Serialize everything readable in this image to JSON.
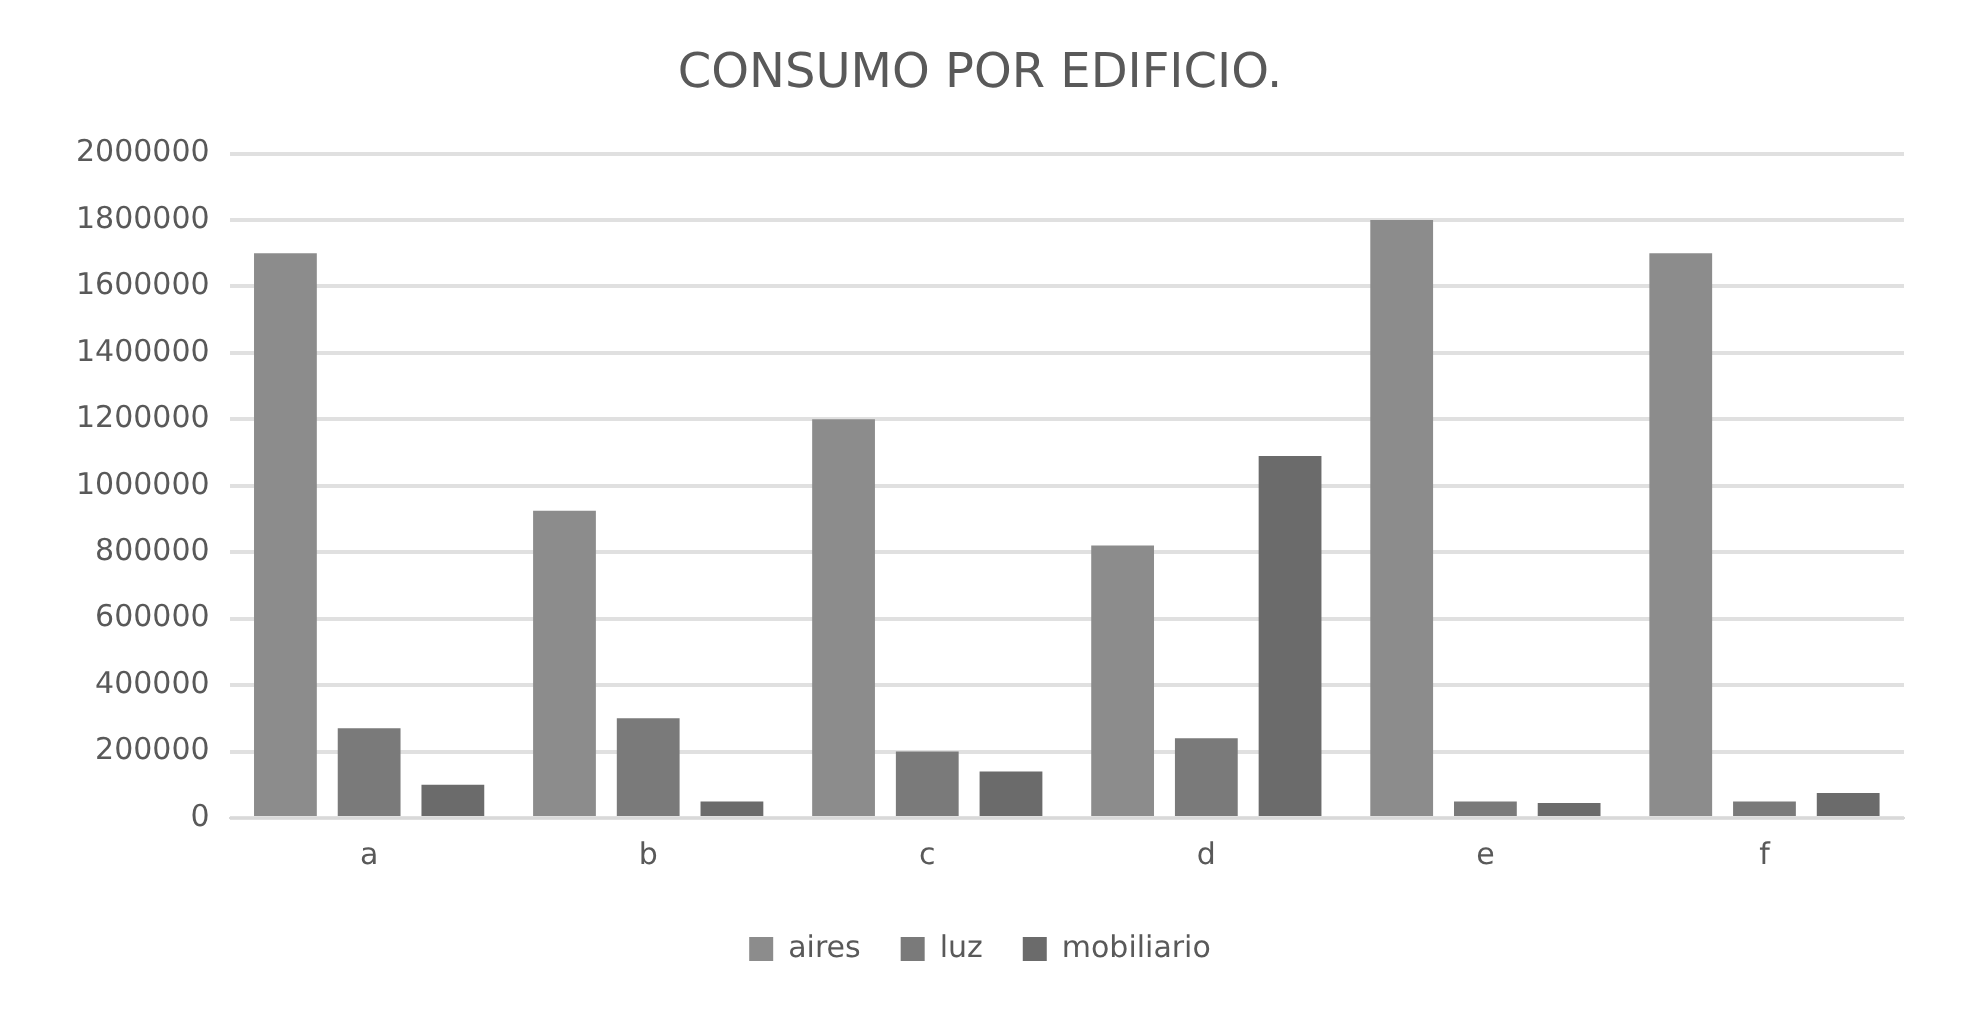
{
  "chart_data": {
    "type": "bar",
    "title": "CONSUMO POR EDIFICIO.",
    "categories": [
      "a",
      "b",
      "c",
      "d",
      "e",
      "f"
    ],
    "series": [
      {
        "name": "aires",
        "color": "#8c8c8c",
        "values": [
          1700000,
          925000,
          1200000,
          820000,
          1800000,
          1700000
        ]
      },
      {
        "name": "luz",
        "color": "#7a7a7a",
        "values": [
          270000,
          300000,
          200000,
          240000,
          50000,
          50000
        ]
      },
      {
        "name": "mobiliario",
        "color": "#6b6b6b",
        "values": [
          100000,
          50000,
          140000,
          1090000,
          45000,
          75000
        ]
      }
    ],
    "ylim": [
      0,
      2000000
    ],
    "yticks": [
      0,
      200000,
      400000,
      600000,
      800000,
      1000000,
      1200000,
      1400000,
      1600000,
      1800000,
      2000000
    ],
    "grid": "y",
    "legend": "bottom"
  }
}
